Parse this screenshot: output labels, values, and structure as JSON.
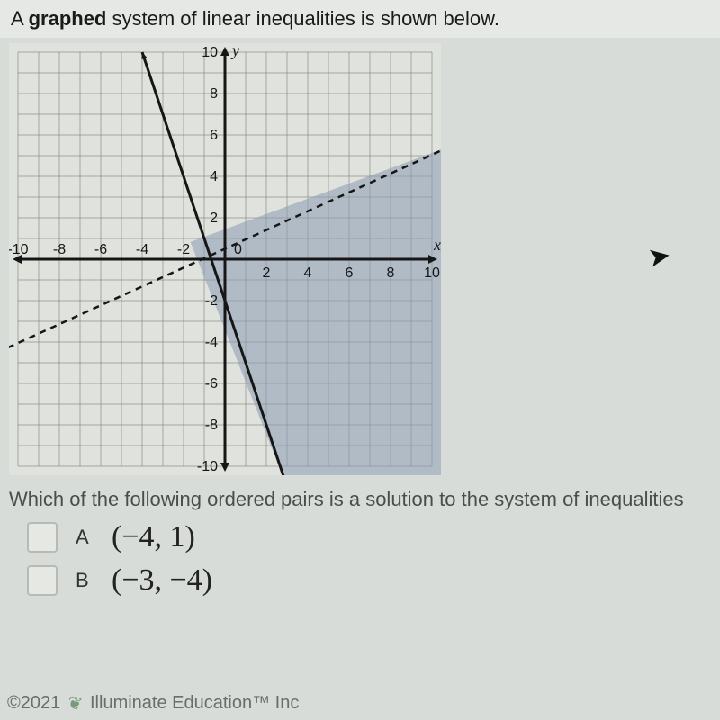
{
  "header": {
    "prefix": "A ",
    "bold": "graphed",
    "rest": " system of linear inequalities is shown below."
  },
  "question": "Which of the following ordered pairs is a solution to the system of inequalities",
  "options": [
    {
      "letter": "A",
      "pair": "(−4, 1)"
    },
    {
      "letter": "B",
      "pair": "(−3, −4)"
    }
  ],
  "footer": {
    "copyright": "©2021",
    "company": "Illuminate Education™  Inc"
  },
  "chart": {
    "type": "line-inequality",
    "x_min": -10,
    "x_max": 10,
    "y_min": -10,
    "y_max": 10,
    "tick_step": 2,
    "grid_color": "#7d8079",
    "bg": "#e0e2dd",
    "shade_fill": "#8a9ab2",
    "shade_opacity": 0.55,
    "axis_width": 3,
    "tick_font": 16,
    "tick_color": "#161616",
    "x_ticks_neg": [
      "-10",
      "-8",
      "-6",
      "-4",
      "-2"
    ],
    "x_ticks_pos": [
      "2",
      "4",
      "6",
      "8",
      "10"
    ],
    "y_ticks_neg": [
      "-2",
      "-4",
      "-6",
      "-8",
      "-10"
    ],
    "y_ticks_pos": [
      "2",
      "4",
      "6",
      "8",
      "10"
    ],
    "origin_label": "0",
    "x_label": "x",
    "y_label": "y",
    "solid_line": {
      "points": [
        [
          -4,
          10
        ],
        [
          3,
          -11
        ]
      ],
      "width": 3,
      "color": "#161616"
    },
    "dashed_line": {
      "points": [
        [
          -11,
          -4.5
        ],
        [
          11,
          5.5
        ]
      ],
      "width": 2.5,
      "color": "#161616",
      "dash": "7,6"
    },
    "shaded_region_poly": [
      [
        -1.67,
        0.833
      ],
      [
        11,
        5.5
      ],
      [
        11,
        -11
      ],
      [
        3,
        -11
      ]
    ]
  }
}
